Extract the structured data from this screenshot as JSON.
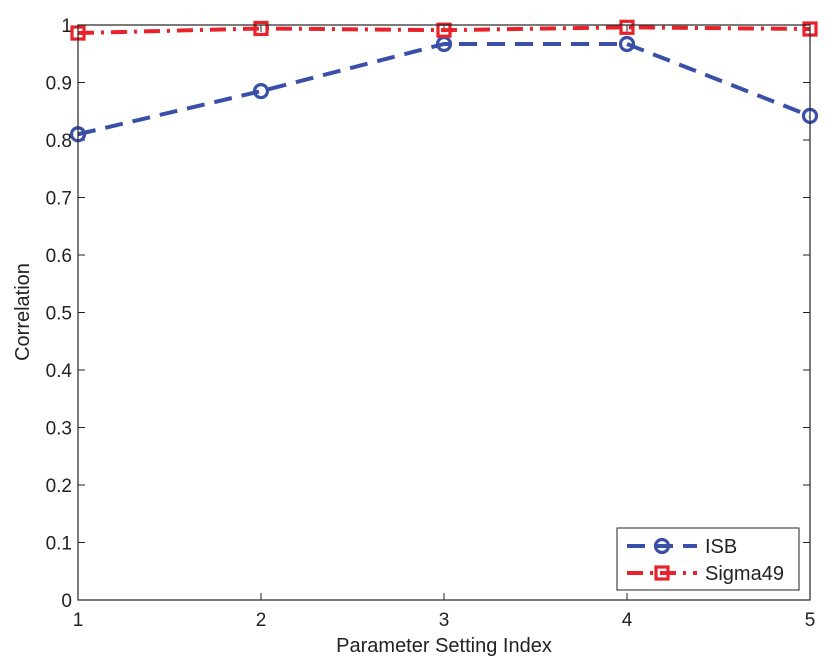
{
  "chart_data": {
    "type": "line",
    "xlabel": "Parameter Setting Index",
    "ylabel": "Correlation",
    "x": [
      1,
      2,
      3,
      4,
      5
    ],
    "xlim": [
      1,
      5
    ],
    "ylim": [
      0,
      1
    ],
    "xticks": [
      "1",
      "2",
      "3",
      "4",
      "5"
    ],
    "yticks": [
      "0",
      "0.1",
      "0.2",
      "0.3",
      "0.4",
      "0.5",
      "0.6",
      "0.7",
      "0.8",
      "0.9",
      "1"
    ],
    "grid": false,
    "legend_position": "bottom-right",
    "series": [
      {
        "name": "ISB",
        "values": [
          0.81,
          0.885,
          0.967,
          0.967,
          0.842
        ],
        "color": "#3a50a8",
        "marker": "circle",
        "line_style": "dashed"
      },
      {
        "name": "Sigma49",
        "values": [
          0.986,
          0.994,
          0.991,
          0.996,
          0.993
        ],
        "color": "#e8222a",
        "marker": "square",
        "line_style": "dash-dot"
      }
    ]
  }
}
